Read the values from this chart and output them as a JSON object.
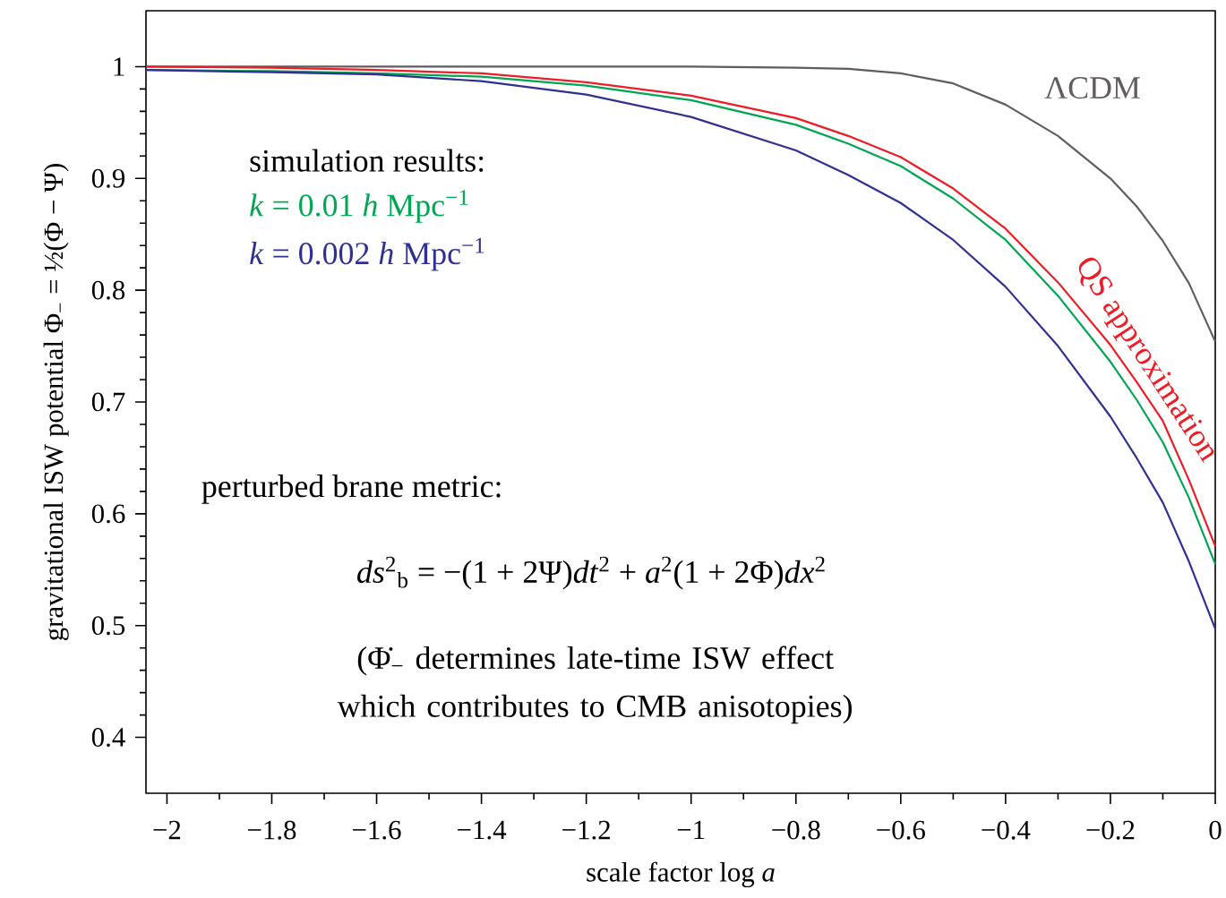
{
  "chart_data": {
    "type": "line",
    "xlabel": "scale factor log *a*",
    "ylabel": "gravitational ISW potential Φ$_{−}$ = ½(Φ − Ψ)",
    "x": [
      -2.04,
      -1.8,
      -1.6,
      -1.4,
      -1.2,
      -1.0,
      -0.8,
      -0.7,
      -0.6,
      -0.5,
      -0.4,
      -0.3,
      -0.2,
      -0.15,
      -0.1,
      -0.05,
      0
    ],
    "series": [
      {
        "name": "ΛCDM",
        "color": "#625b5f",
        "values": [
          1,
          1,
          1,
          1,
          1,
          1,
          0.999,
          0.998,
          0.994,
          0.985,
          0.966,
          0.938,
          0.9,
          0.875,
          0.844,
          0.806,
          0.754
        ]
      },
      {
        "name": "QS approximation",
        "color": "#ee1c25",
        "values": [
          1.0,
          0.999,
          0.997,
          0.994,
          0.986,
          0.974,
          0.954,
          0.938,
          0.919,
          0.891,
          0.855,
          0.807,
          0.751,
          0.718,
          0.683,
          0.63,
          0.571
        ]
      },
      {
        "name": "*k* = 0.01 *h* Mpc$^{−1}$",
        "color": "#00a651",
        "values": [
          0.997,
          0.996,
          0.994,
          0.991,
          0.983,
          0.97,
          0.948,
          0.931,
          0.911,
          0.882,
          0.845,
          0.795,
          0.736,
          0.702,
          0.664,
          0.614,
          0.555
        ]
      },
      {
        "name": "*k* = 0.002 *h* Mpc$^{−1}$",
        "color": "#2e3192",
        "values": [
          0.997,
          0.995,
          0.993,
          0.987,
          0.975,
          0.955,
          0.925,
          0.903,
          0.878,
          0.845,
          0.803,
          0.75,
          0.687,
          0.65,
          0.61,
          0.557,
          0.497
        ]
      }
    ],
    "annotations": [
      "simulation results:",
      "perturbed brane metric:",
      "*ds*$^{2}$$_{b}$ = −(1 + 2Ψ)*dt*$^{2}$ + *a*$^{2}$(1 + 2Φ)*dx*$^{2}$",
      "(Φ̇$_{−}$ determines late-time ISW effect which contributes to CMB anisotopies)"
    ],
    "xlim": [
      -2.04,
      0
    ],
    "ylim": [
      0.35,
      1.05
    ],
    "xticks": [
      {
        "value": -2,
        "label": "−2"
      },
      {
        "value": -1.8,
        "label": "−1.8"
      },
      {
        "value": -1.6,
        "label": "−1.6"
      },
      {
        "value": -1.4,
        "label": "−1.4"
      },
      {
        "value": -1.2,
        "label": "−1.2"
      },
      {
        "value": -1,
        "label": "−1"
      },
      {
        "value": -0.8,
        "label": "−0.8"
      },
      {
        "value": -0.6,
        "label": "−0.6"
      },
      {
        "value": -0.4,
        "label": "−0.4"
      },
      {
        "value": -0.2,
        "label": "−0.2"
      },
      0
    ],
    "yticks": [
      0.4,
      0.5,
      0.6,
      0.7,
      0.8,
      0.9,
      1
    ],
    "grid": false,
    "marker": "none",
    "line_style": "solid"
  }
}
